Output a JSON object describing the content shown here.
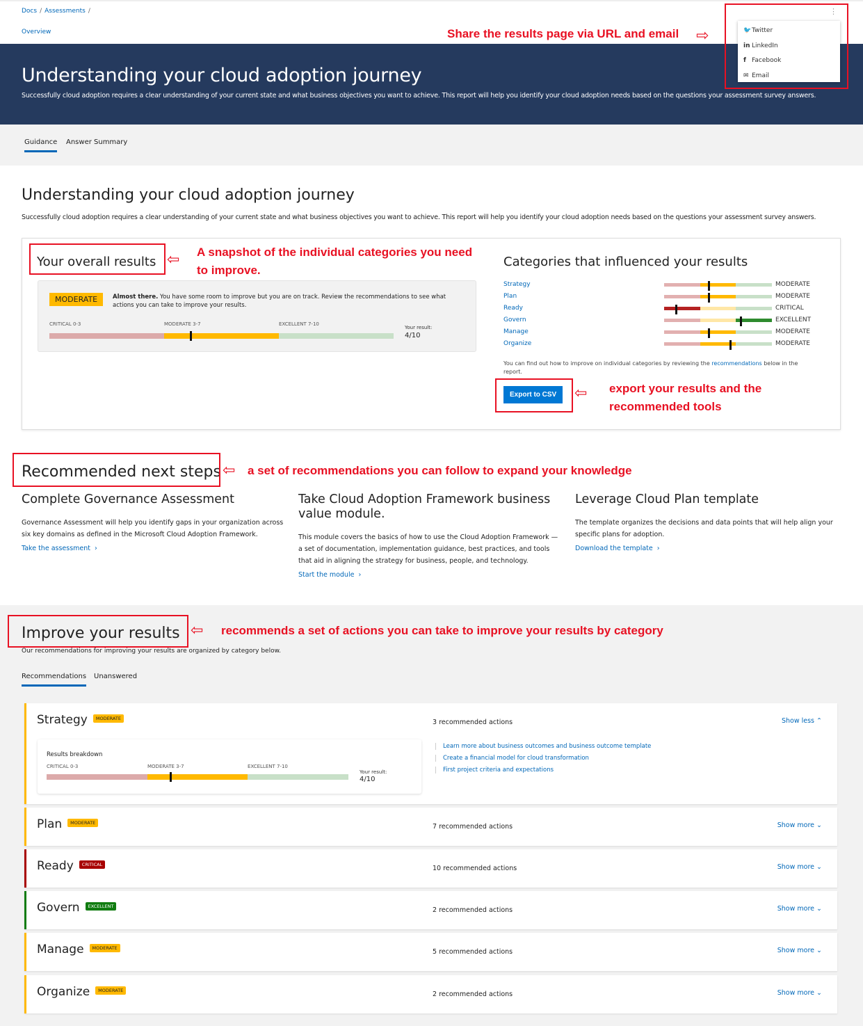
{
  "breadcrumb": [
    "Docs",
    "Assessments"
  ],
  "overview_link": "Overview",
  "share_menu": [
    {
      "icon": "twitter-icon",
      "glyph": "🐦",
      "label": "Twitter"
    },
    {
      "icon": "linkedin-icon",
      "glyph": "in",
      "label": "LinkedIn"
    },
    {
      "icon": "facebook-icon",
      "glyph": "f",
      "label": "Facebook"
    },
    {
      "icon": "email-icon",
      "glyph": "✉",
      "label": "Email"
    }
  ],
  "hero": {
    "title": "Understanding your cloud adoption journey",
    "desc": "Successfully cloud adoption requires a clear understanding of your current state and what business objectives you want to achieve. This report will help you identify your cloud adoption needs based on the questions your assessment survey answers."
  },
  "tabs": [
    "Guidance",
    "Answer Summary"
  ],
  "main": {
    "title": "Understanding your cloud adoption journey",
    "desc": "Successfully cloud adoption requires a clear understanding of your current state and what business objectives you want to achieve. This report will help you identify your cloud adoption needs based on the questions your assessment survey answers."
  },
  "overall": {
    "title": "Your overall results",
    "badge": "MODERATE",
    "lead": "Almost there.",
    "text": " You have some room to improve but you are on track. Review the recommendations to see what actions you can take to improve your results.",
    "ranges": [
      "CRITICAL 0-3",
      "MODERATE 3-7",
      "EXCELLENT 7-10"
    ],
    "result_label": "Your result:",
    "result": "4/10",
    "score": 4
  },
  "categories": {
    "title": "Categories that influenced your results",
    "items": [
      {
        "name": "Strategy",
        "score": 4,
        "status": "MODERATE"
      },
      {
        "name": "Plan",
        "score": 4,
        "status": "MODERATE"
      },
      {
        "name": "Ready",
        "score": 1,
        "status": "CRITICAL"
      },
      {
        "name": "Govern",
        "score": 7,
        "status": "EXCELLENT"
      },
      {
        "name": "Manage",
        "score": 4,
        "status": "MODERATE"
      },
      {
        "name": "Organize",
        "score": 6,
        "status": "MODERATE"
      }
    ],
    "note_pre": "You can find out how to improve on individual categories by reviewing the ",
    "note_link": "recommendations",
    "note_post": " below in the report.",
    "export": "Export to CSV"
  },
  "next_steps": {
    "title": "Recommended next steps",
    "items": [
      {
        "title": "Complete Governance Assessment",
        "desc": "Governance Assessment will help you identify gaps in your organization across six key domains as defined in the Microsoft Cloud Adoption Framework.",
        "link": "Take the assessment"
      },
      {
        "title": "Take Cloud Adoption Framework business value module.",
        "desc": "This module covers the basics of how to use the Cloud Adoption Framework — a set of documentation, implementation guidance, best practices, and tools that aid in aligning the strategy for business, people, and technology.",
        "link": "Start the module"
      },
      {
        "title": "Leverage Cloud Plan template",
        "desc": "The template organizes the decisions and data points that will help align your specific plans for adoption.",
        "link": "Download the template"
      }
    ]
  },
  "improve": {
    "title": "Improve your results",
    "desc": "Our recommendations for improving your results are organized by category below.",
    "tabs": [
      "Recommendations",
      "Unanswered"
    ],
    "breakdown_label": "Results breakdown",
    "actions": [
      "Learn more about business outcomes and business outcome template",
      "Create a financial model for cloud transformation",
      "First project criteria and expectations"
    ],
    "items": [
      {
        "name": "Strategy",
        "status": "MODERATE",
        "count": "3 recommended actions",
        "toggle": "Show less ⌃",
        "result": "4/10",
        "score": 4
      },
      {
        "name": "Plan",
        "status": "MODERATE",
        "count": "7 recommended actions",
        "toggle": "Show more ⌄"
      },
      {
        "name": "Ready",
        "status": "CRITICAL",
        "count": "10 recommended actions",
        "toggle": "Show more ⌄"
      },
      {
        "name": "Govern",
        "status": "EXCELLENT",
        "count": "2 recommended actions",
        "toggle": "Show more ⌄"
      },
      {
        "name": "Manage",
        "status": "MODERATE",
        "count": "5 recommended actions",
        "toggle": "Show more ⌄"
      },
      {
        "name": "Organize",
        "status": "MODERATE",
        "count": "2 recommended actions",
        "toggle": "Show more ⌄"
      }
    ]
  },
  "annotations": [
    "Share the results page via URL and email",
    "A snapshot of the individual categories you need to improve.",
    "export your results and the recommended tools",
    "a set of recommendations you can follow to expand your knowledge",
    "recommends a set of actions you can take to improve your results by category"
  ],
  "colors": {
    "navy": "#253a5e",
    "moderate": "#ffb900",
    "critical": "#a80000",
    "excellent": "#107c10",
    "link": "#0067b8",
    "annotation": "#e81123"
  }
}
